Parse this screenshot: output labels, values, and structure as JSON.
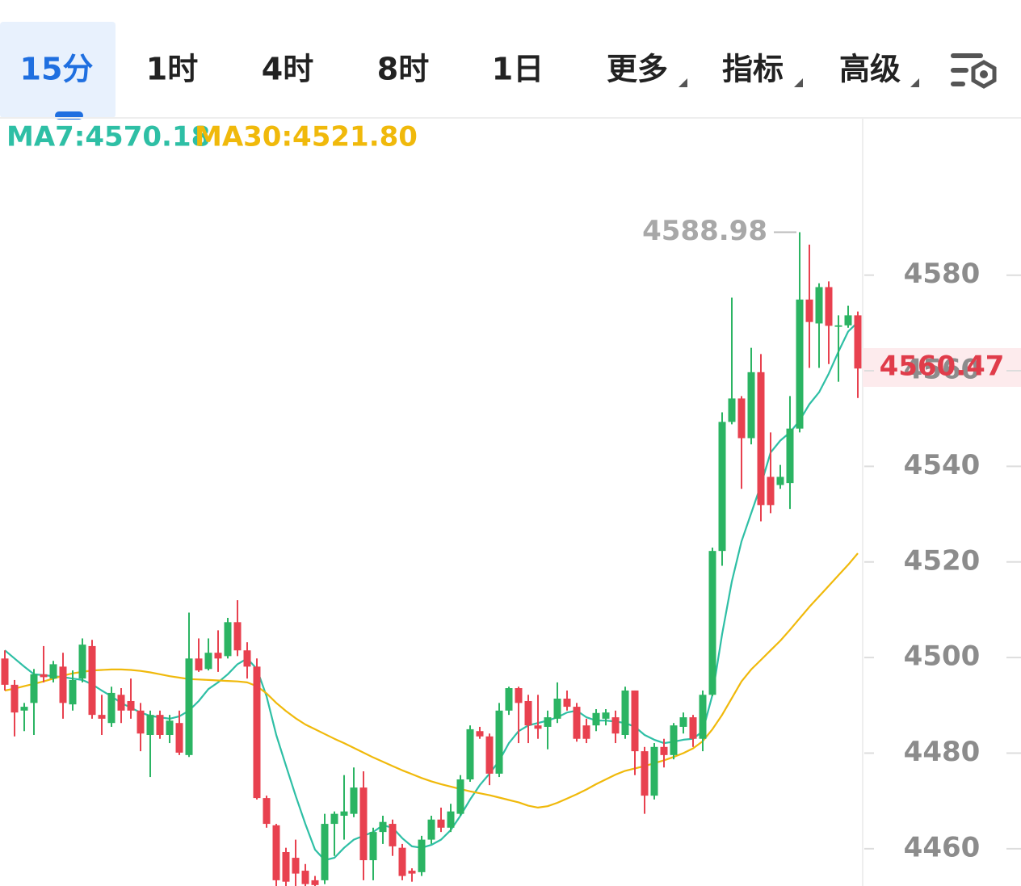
{
  "tabs": [
    "15分",
    "1时",
    "4时",
    "8时",
    "1日",
    "更多",
    "指标",
    "高级"
  ],
  "chart_data": {
    "type": "candlestick",
    "up_color": "#2bb463",
    "down_color": "#e8414f",
    "ylim": [
      4452.2,
      4612.9
    ],
    "yticks": [
      4460,
      4480,
      4500,
      4520,
      4540,
      4560,
      4580
    ],
    "grid": false,
    "open": [
      4499.8,
      4494.3,
      4488.9,
      4490.5,
      4496.5,
      4495.6,
      4498.1,
      4490.2,
      4495.6,
      4502.4,
      4488.0,
      4486.3,
      4492.2,
      4490.9,
      4488.9,
      4483.8,
      4488.0,
      4483.8,
      4486.3,
      4479.6,
      4499.8,
      4497.6,
      4501.0,
      4500.3,
      4507.4,
      4501.5,
      4498.1,
      4470.6,
      4464.9,
      4459.3,
      4458.1,
      4455.4,
      4453.4,
      4453.4,
      4465.2,
      4466.9,
      4467.3,
      4472.8,
      4457.6,
      4463.5,
      4465.2,
      4460.2,
      4455.4,
      4455.1,
      4461.9,
      4466.1,
      4464.4,
      4467.3,
      4474.5,
      4484.6,
      4483.5,
      4475.7,
      4488.9,
      4493.6,
      4490.9,
      4485.8,
      4485.5,
      4487.2,
      4491.4,
      4489.7,
      4485.8,
      4485.8,
      4487.2,
      4487.5,
      4483.8,
      4493.1,
      4480.4,
      4471.1,
      4481.3,
      4479.6,
      4485.5,
      4487.5,
      4483.0,
      4492.2,
      4522.3,
      4549.3,
      4554.2,
      4545.9,
      4559.7,
      4537.8,
      4536.1,
      4536.5,
      4547.9,
      4574.9,
      4569.9,
      4577.5,
      4569.2,
      4569.5,
      4571.6
    ],
    "high": [
      4501.5,
      4495.3,
      4490.5,
      4497.6,
      4502.4,
      4499.3,
      4501.0,
      4497.3,
      4504.0,
      4503.7,
      4492.2,
      4493.9,
      4493.6,
      4495.6,
      4490.5,
      4488.9,
      4488.9,
      4488.0,
      4488.9,
      4509.4,
      4504.0,
      4504.0,
      4505.7,
      4508.3,
      4512.0,
      4503.2,
      4499.8,
      4471.1,
      4465.2,
      4460.2,
      4461.9,
      4456.8,
      4454.3,
      4467.3,
      4467.8,
      4475.4,
      4477.0,
      4476.2,
      4464.4,
      4466.9,
      4466.1,
      4461.0,
      4455.9,
      4462.7,
      4466.9,
      4468.6,
      4469.4,
      4475.4,
      4485.8,
      4485.5,
      4484.1,
      4490.5,
      4493.9,
      4493.9,
      4492.2,
      4492.2,
      4488.9,
      4494.8,
      4493.1,
      4490.5,
      4487.2,
      4489.2,
      4489.2,
      4488.9,
      4493.9,
      4493.1,
      4481.3,
      4482.1,
      4483.0,
      4486.3,
      4488.5,
      4488.0,
      4493.1,
      4523.0,
      4551.3,
      4575.3,
      4554.7,
      4564.8,
      4563.5,
      4547.1,
      4540.3,
      4554.7,
      4588.98,
      4586.4,
      4578.3,
      4578.7,
      4571.6,
      4573.6,
      4572.4
    ],
    "low": [
      4493.1,
      4483.5,
      4484.6,
      4483.8,
      4494.8,
      4494.8,
      4487.2,
      4488.9,
      4494.8,
      4487.2,
      4483.8,
      4485.5,
      4486.3,
      4487.2,
      4480.4,
      4475.0,
      4483.0,
      4482.1,
      4479.6,
      4479.2,
      4497.0,
      4497.3,
      4497.0,
      4499.8,
      4500.3,
      4495.6,
      4470.3,
      4464.4,
      4452.2,
      4452.2,
      4452.2,
      4452.2,
      4452.2,
      4452.6,
      4458.5,
      4461.9,
      4466.6,
      4453.4,
      4453.4,
      4461.0,
      4458.5,
      4453.4,
      4453.1,
      4454.3,
      4461.0,
      4463.5,
      4463.5,
      4466.9,
      4474.0,
      4483.0,
      4473.3,
      4475.0,
      4488.0,
      4482.1,
      4482.1,
      4483.0,
      4480.8,
      4486.3,
      4488.9,
      4482.4,
      4482.1,
      4484.6,
      4485.8,
      4482.1,
      4483.0,
      4475.4,
      4467.3,
      4470.3,
      4477.0,
      4478.7,
      4484.1,
      4481.3,
      4480.4,
      4491.9,
      4519.2,
      4548.8,
      4535.3,
      4544.6,
      4528.5,
      4530.2,
      4535.3,
      4531.1,
      4547.1,
      4560.6,
      4560.6,
      4561.4,
      4557.7,
      4569.0,
      4554.3
    ],
    "close": [
      4494.3,
      4488.5,
      4489.7,
      4496.5,
      4495.9,
      4498.6,
      4490.5,
      4495.3,
      4502.7,
      4488.0,
      4487.2,
      4492.6,
      4488.9,
      4488.9,
      4484.1,
      4488.0,
      4483.8,
      4486.8,
      4480.1,
      4499.8,
      4497.3,
      4501.0,
      4499.8,
      4507.4,
      4501.5,
      4498.1,
      4470.6,
      4465.2,
      4453.4,
      4453.1,
      4454.8,
      4452.6,
      4452.4,
      4465.2,
      4467.3,
      4467.8,
      4472.8,
      4457.6,
      4463.5,
      4465.6,
      4460.5,
      4454.3,
      4454.8,
      4461.9,
      4466.1,
      4464.4,
      4467.8,
      4474.5,
      4485.0,
      4483.5,
      4475.7,
      4488.9,
      4493.6,
      4490.5,
      4485.8,
      4485.1,
      4487.5,
      4491.4,
      4489.7,
      4483.0,
      4483.0,
      4488.4,
      4488.5,
      4484.1,
      4493.1,
      4480.4,
      4471.1,
      4481.3,
      4479.6,
      4485.8,
      4487.5,
      4483.0,
      4492.2,
      4522.3,
      4549.3,
      4554.2,
      4545.9,
      4559.7,
      4531.9,
      4531.9,
      4537.8,
      4547.9,
      4574.9,
      4570.2,
      4577.5,
      4569.4,
      4569.5,
      4571.6,
      4560.47
    ],
    "series": [
      {
        "name": "MA7",
        "label": "MA7:4570.18",
        "color": "#2ebfa5",
        "values": [
          4501.5,
          4499.8,
          4498.1,
          4496.5,
          4496.3,
          4496.1,
          4495.9,
          4495.6,
          4495.3,
          4494.4,
          4493.1,
          4491.9,
          4490.5,
          4489.5,
          4488.5,
          4487.8,
          4487.5,
          4487.2,
          4487.7,
          4488.9,
          4490.9,
          4493.4,
          4494.8,
          4496.5,
          4498.6,
          4499.8,
          4497.6,
          4491.9,
          4483.8,
          4477.4,
          4471.1,
          4465.2,
          4459.8,
          4457.6,
          4458.1,
          4460.2,
          4461.9,
          4462.7,
          4463.5,
          4464.9,
          4464.4,
          4462.2,
          4460.5,
          4460.2,
          4460.8,
          4461.9,
          4463.9,
          4466.9,
          4470.3,
          4473.3,
          4475.7,
          4478.4,
          4482.1,
          4484.6,
          4485.8,
          4486.3,
          4486.8,
          4487.5,
          4488.5,
          4488.9,
          4487.5,
          4486.8,
          4486.8,
          4486.6,
          4486.3,
          4485.5,
          4483.8,
          4482.8,
          4482.1,
          4482.4,
          4482.8,
          4483.0,
          4484.6,
          4492.2,
          4504.9,
          4515.9,
          4524.3,
          4530.2,
          4536.1,
          4542.9,
          4545.4,
          4547.1,
          4549.6,
          4553.0,
          4555.5,
          4559.4,
          4564.0,
          4568.2,
          4570.18
        ]
      },
      {
        "name": "MA30",
        "label": "MA30:4521.80",
        "color": "#f0b90b",
        "values": [
          4493.1,
          4493.5,
          4494.0,
          4494.5,
          4495.0,
          4495.6,
          4496.2,
          4496.7,
          4497.0,
          4497.3,
          4497.4,
          4497.5,
          4497.5,
          4497.4,
          4497.2,
          4496.9,
          4496.5,
          4496.1,
          4495.8,
          4495.5,
          4495.4,
          4495.3,
          4495.2,
          4495.1,
          4495.0,
          4494.8,
          4494.0,
          4492.5,
          4490.5,
          4488.8,
          4487.3,
          4486.0,
          4485.0,
          4484.0,
          4483.0,
          4482.1,
          4481.1,
          4480.1,
          4479.1,
          4478.2,
          4477.3,
          4476.4,
          4475.6,
          4474.8,
          4474.1,
          4473.5,
          4473.0,
          4472.5,
          4472.0,
          4471.6,
          4471.2,
          4470.7,
          4470.2,
          4469.7,
          4469.0,
          4468.6,
          4468.9,
          4469.6,
          4470.5,
          4471.4,
          4472.4,
          4473.5,
          4474.5,
          4475.5,
          4476.3,
          4476.8,
          4477.3,
          4477.9,
          4478.5,
          4479.2,
          4480.0,
          4481.0,
          4482.5,
          4485.0,
          4488.0,
          4491.5,
          4495.0,
          4497.5,
          4499.5,
          4501.5,
          4503.5,
          4505.8,
          4508.2,
          4510.6,
          4512.8,
          4515.0,
          4517.2,
          4519.4,
          4521.8
        ]
      }
    ]
  }
}
